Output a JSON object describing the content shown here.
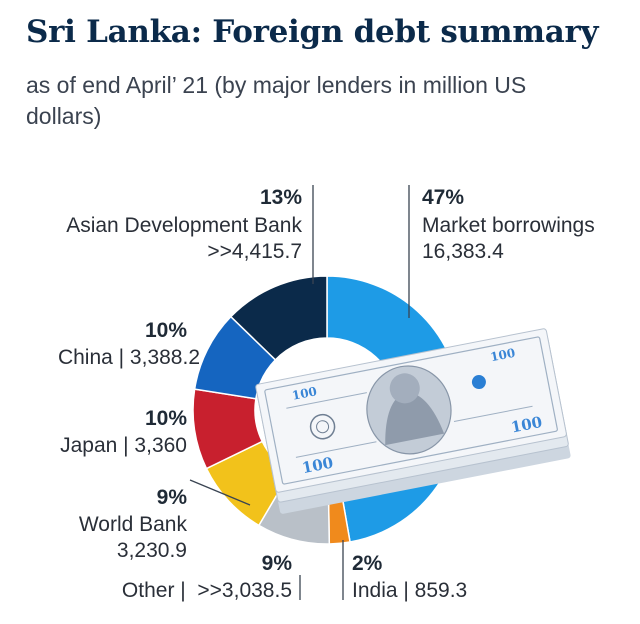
{
  "title": "Sri Lanka: Foreign debt summary",
  "subtitle": "as of end April’ 21 (by major lenders in million US dollars)",
  "chart_data": {
    "type": "pie",
    "donut": true,
    "title": "Sri Lanka: Foreign debt summary",
    "subtitle": "as of end April’ 21 (by major lenders in million US dollars)",
    "slices": [
      {
        "name": "Market borrowings",
        "percent_label": "47%",
        "value_label": "16,383.4",
        "value": 16383.4,
        "color": "#1e9be6"
      },
      {
        "name": "India",
        "percent_label": "2%",
        "value_label": "859.3",
        "value": 859.3,
        "color": "#f08a1c"
      },
      {
        "name": "Other",
        "percent_label": "9%",
        "value_label": ">>3,038.5",
        "value": 3038.5,
        "color": "#b9c0c8"
      },
      {
        "name": "World Bank",
        "percent_label": "9%",
        "value_label": "3,230.9",
        "value": 3230.9,
        "color": "#f2c21b"
      },
      {
        "name": "Japan",
        "percent_label": "10%",
        "value_label": "3,360",
        "value": 3360,
        "color": "#c8202e"
      },
      {
        "name": "China",
        "percent_label": "10%",
        "value_label": "3,388.2",
        "value": 3388.2,
        "color": "#1565c0"
      },
      {
        "name": "Asian Development Bank",
        "percent_label": "13%",
        "value_label": ">>4,415.7",
        "value": 4415.7,
        "color": "#0b2a4a"
      }
    ],
    "labels": {
      "adb": {
        "pct": "13%",
        "line1": "Asian Development Bank",
        "line2": ">>4,415.7"
      },
      "market": {
        "pct": "47%",
        "line1": "Market borrowings",
        "line2": "16,383.4"
      },
      "china": {
        "pct": "10%",
        "line1": "China | 3,388.2"
      },
      "japan": {
        "pct": "10%",
        "line1": "Japan | 3,360"
      },
      "worldbank": {
        "pct": "9%",
        "line1": "World Bank",
        "line2": "3,230.9"
      },
      "other": {
        "pct": "9%",
        "line1": "Other |  >>3,038.5"
      },
      "india": {
        "pct": "2%",
        "line1": "India | 859.3"
      }
    },
    "banknote": {
      "denomination": "100"
    }
  }
}
